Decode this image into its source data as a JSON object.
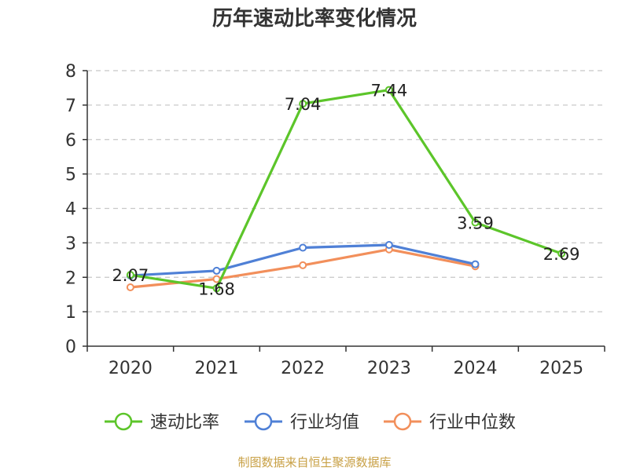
{
  "chart_data": {
    "type": "line",
    "title": "历年速动比率变化情况",
    "categories": [
      "2020",
      "2021",
      "2022",
      "2023",
      "2024",
      "2025"
    ],
    "ylim": [
      0,
      8
    ],
    "yticks": [
      0,
      1,
      2,
      3,
      4,
      5,
      6,
      7,
      8
    ],
    "grid": true,
    "legend_position": "bottom",
    "series": [
      {
        "name": "速动比率",
        "color": "#5cc52a",
        "values": [
          2.07,
          1.68,
          7.04,
          7.44,
          3.59,
          2.69
        ],
        "labels": [
          "2.07",
          "1.68",
          "7.04",
          "7.44",
          "3.59",
          "2.69"
        ]
      },
      {
        "name": "行业均值",
        "color": "#4f80d6",
        "values": [
          2.05,
          2.19,
          2.86,
          2.94,
          2.38,
          null
        ]
      },
      {
        "name": "行业中位数",
        "color": "#f28f5b",
        "values": [
          1.71,
          1.95,
          2.35,
          2.81,
          2.32,
          null
        ]
      }
    ],
    "source": "制图数据来自恒生聚源数据库"
  }
}
